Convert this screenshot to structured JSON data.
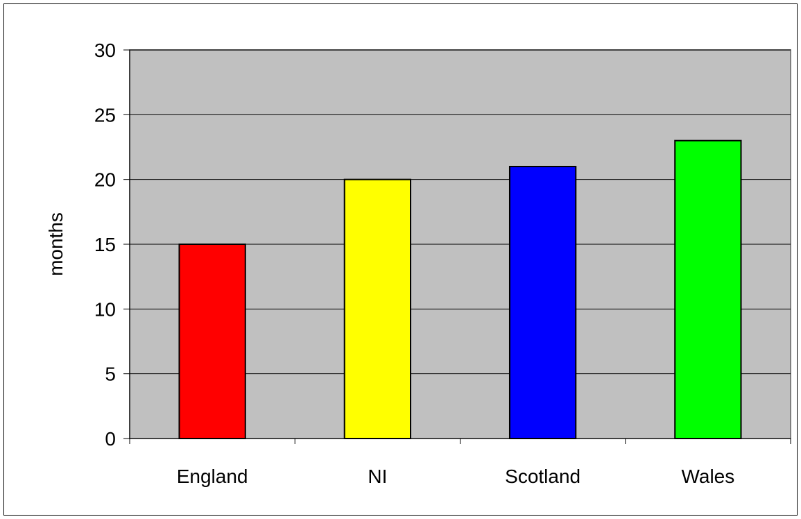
{
  "chart_data": {
    "type": "bar",
    "title": "",
    "xlabel": "",
    "ylabel": "months",
    "categories": [
      "England",
      "NI",
      "Scotland",
      "Wales"
    ],
    "values": [
      15,
      20,
      21,
      23
    ],
    "bar_colors": [
      "#ff0000",
      "#ffff00",
      "#0000ff",
      "#00ff00"
    ],
    "ylim": [
      0,
      30
    ],
    "yticks": [
      0,
      5,
      10,
      15,
      20,
      25,
      30
    ],
    "grid": true,
    "plot_background": "#c0c0c0",
    "legend": "none"
  }
}
